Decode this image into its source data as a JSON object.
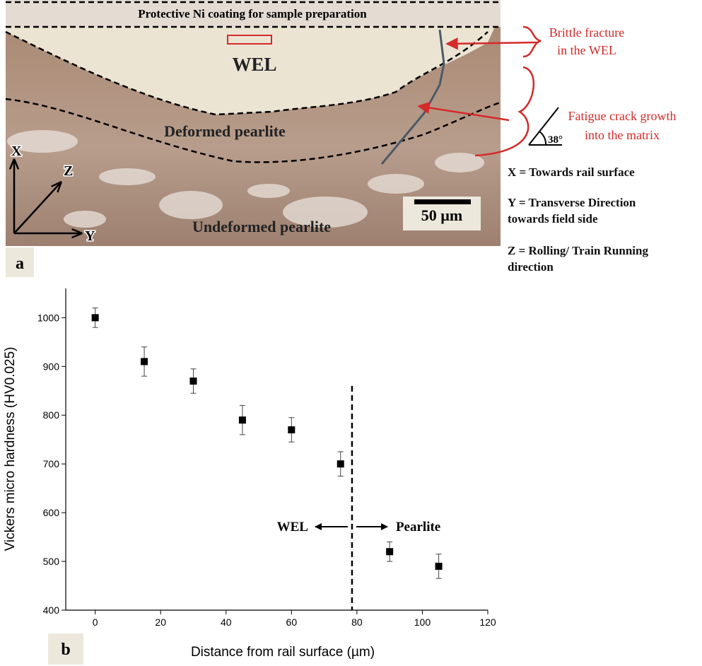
{
  "figure": {
    "panel_a": {
      "label": "a",
      "coating": "Protective Ni coating for sample preparation",
      "regions": [
        "WEL",
        "Deformed pearlite",
        "Undeformed pearlite"
      ],
      "axes": [
        "X",
        "Z",
        "Y"
      ],
      "scale_bar": "50 µm",
      "annotations": [
        [
          "Brittle fracture",
          "in the WEL"
        ],
        [
          "Fatigue crack growth",
          "into the matrix"
        ]
      ],
      "angle": "38°",
      "legend": [
        [
          "X = Towards rail surface"
        ],
        [
          "Y = Transverse Direction",
          "towards field side"
        ],
        [
          "Z = Rolling/ Train Running",
          "direction"
        ]
      ]
    }
  },
  "chart_data": {
    "type": "scatter",
    "panel_label": "b",
    "x_label": "Distance from rail surface (µm)",
    "y_label": "Vickers micro hardness (HV0.025)",
    "x": [
      0,
      15,
      30,
      45,
      60,
      75,
      90,
      105
    ],
    "values": [
      1000,
      910,
      870,
      790,
      770,
      700,
      520,
      490
    ],
    "errors": [
      20,
      30,
      25,
      30,
      25,
      25,
      20,
      25
    ],
    "color": "#000000",
    "xlim": [
      -9,
      120
    ],
    "xticks": [
      0,
      20,
      40,
      60,
      80,
      100,
      120
    ],
    "ylim": [
      400,
      1060
    ],
    "yticks": [
      400,
      500,
      600,
      700,
      800,
      900,
      1000
    ],
    "divider": {
      "x": 78.5,
      "y_top": 860,
      "left_label": "WEL",
      "right_label": "Pearlite"
    }
  }
}
